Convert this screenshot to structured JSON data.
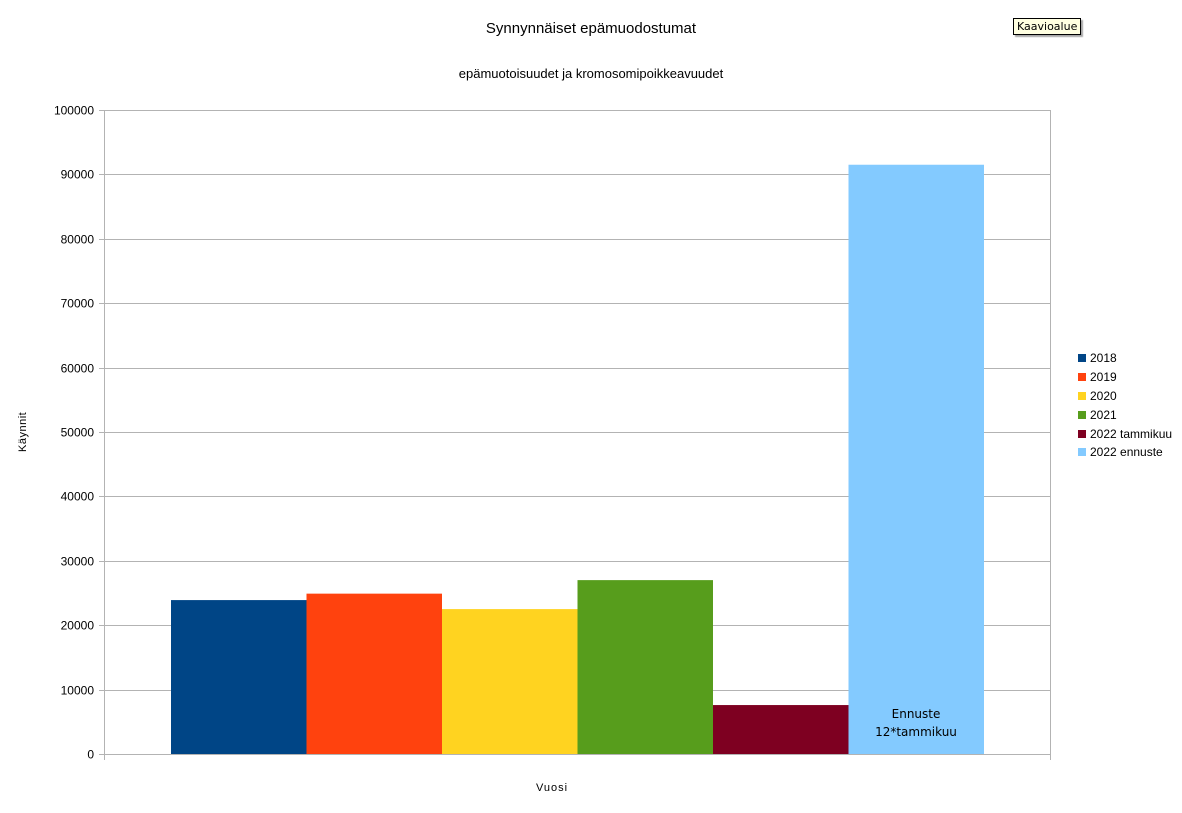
{
  "tooltip": "Kaavioalue",
  "chart_data": {
    "type": "bar",
    "title": "Synnynnäiset epämuodostumat",
    "subtitle": "epämuotoisuudet ja kromosomipoikkeavuudet",
    "xlabel": "Vuosi",
    "ylabel": "Käynnit",
    "ylim": [
      0,
      100000
    ],
    "yticks": [
      0,
      10000,
      20000,
      30000,
      40000,
      50000,
      60000,
      70000,
      80000,
      90000,
      100000
    ],
    "grid": true,
    "legend_position": "right",
    "series": [
      {
        "name": "2018",
        "values": [
          23900
        ],
        "color": "#004586"
      },
      {
        "name": "2019",
        "values": [
          24900
        ],
        "color": "#ff420e"
      },
      {
        "name": "2020",
        "values": [
          22500
        ],
        "color": "#ffd320"
      },
      {
        "name": "2021",
        "values": [
          27000
        ],
        "color": "#579d1c"
      },
      {
        "name": "2022 tammikuu",
        "values": [
          7600
        ],
        "color": "#7e0021"
      },
      {
        "name": "2022 ennuste",
        "values": [
          91500
        ],
        "color": "#83caff"
      }
    ],
    "annotation": [
      "Ennuste",
      "12*tammikuu"
    ]
  }
}
